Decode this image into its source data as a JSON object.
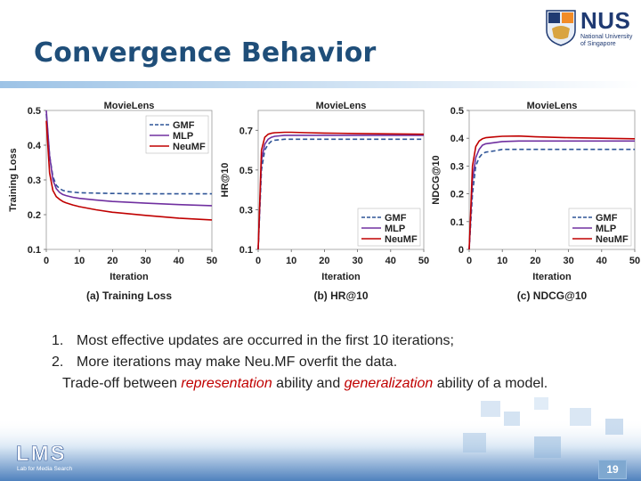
{
  "slide": {
    "title": "Convergence Behavior",
    "bullets": [
      {
        "num": "1.",
        "text": "Most effective updates are occurred in the first 10 iterations;"
      },
      {
        "num": "2.",
        "text": "More iterations may make Neu.MF overfit the data."
      }
    ],
    "tradeoff": {
      "pre": "Trade-off between ",
      "em1": "representation",
      "mid": " ability and ",
      "em2": "generalization",
      "post": " ability of a model."
    },
    "page_number": "19",
    "nus_logo": {
      "name": "NUS",
      "line1": "National University",
      "line2": "of Singapore"
    },
    "lms_logo": {
      "name": "LMS",
      "sub": "Lab for Media Search"
    }
  },
  "colors": {
    "title": "#1f4e79",
    "gmf": "#2f5597",
    "mlp": "#7030a0",
    "neumf": "#c00000",
    "emphasis": "#c00000"
  },
  "chart_data": [
    {
      "type": "line",
      "title": "MovieLens",
      "caption": "(a) Training Loss",
      "xlabel": "Iteration",
      "ylabel": "Training Loss",
      "xlim": [
        0,
        50
      ],
      "ylim": [
        0.1,
        0.5
      ],
      "xticks": [
        "0",
        "10",
        "20",
        "30",
        "40",
        "50"
      ],
      "yticks": [
        "0.1",
        "0.2",
        "0.3",
        "0.4",
        "0.5"
      ],
      "legend_position": "top-right",
      "series": [
        {
          "name": "GMF",
          "style": "dashed",
          "color": "#2f5597",
          "x": [
            0,
            1,
            2,
            3,
            4,
            5,
            6,
            8,
            10,
            15,
            20,
            30,
            40,
            50
          ],
          "y": [
            0.49,
            0.37,
            0.31,
            0.285,
            0.275,
            0.27,
            0.267,
            0.265,
            0.263,
            0.262,
            0.261,
            0.26,
            0.26,
            0.26
          ]
        },
        {
          "name": "MLP",
          "style": "solid",
          "color": "#7030a0",
          "x": [
            0,
            1,
            2,
            3,
            4,
            5,
            6,
            8,
            10,
            15,
            20,
            30,
            40,
            50
          ],
          "y": [
            0.5,
            0.37,
            0.3,
            0.275,
            0.264,
            0.258,
            0.255,
            0.25,
            0.247,
            0.242,
            0.238,
            0.233,
            0.229,
            0.226
          ]
        },
        {
          "name": "NeuMF",
          "style": "solid",
          "color": "#c00000",
          "x": [
            0,
            1,
            2,
            3,
            4,
            5,
            6,
            8,
            10,
            15,
            20,
            30,
            40,
            50
          ],
          "y": [
            0.47,
            0.32,
            0.27,
            0.252,
            0.244,
            0.238,
            0.234,
            0.228,
            0.223,
            0.214,
            0.207,
            0.198,
            0.19,
            0.185
          ]
        }
      ]
    },
    {
      "type": "line",
      "title": "MovieLens",
      "caption": "(b) HR@10",
      "xlabel": "Iteration",
      "ylabel": "HR@10",
      "xlim": [
        0,
        50
      ],
      "ylim": [
        0.1,
        0.8
      ],
      "xticks": [
        "0",
        "10",
        "20",
        "30",
        "40",
        "50"
      ],
      "yticks": [
        "0.1",
        "0.3",
        "0.5",
        "0.7"
      ],
      "legend_position": "bottom-right",
      "series": [
        {
          "name": "GMF",
          "style": "dashed",
          "color": "#2f5597",
          "x": [
            0,
            1,
            2,
            3,
            4,
            5,
            8,
            10,
            15,
            20,
            30,
            40,
            50
          ],
          "y": [
            0.1,
            0.5,
            0.6,
            0.63,
            0.645,
            0.65,
            0.655,
            0.655,
            0.655,
            0.655,
            0.655,
            0.655,
            0.655
          ]
        },
        {
          "name": "MLP",
          "style": "solid",
          "color": "#7030a0",
          "x": [
            0,
            1,
            2,
            3,
            4,
            5,
            8,
            10,
            15,
            20,
            30,
            40,
            50
          ],
          "y": [
            0.1,
            0.55,
            0.63,
            0.655,
            0.665,
            0.67,
            0.675,
            0.675,
            0.675,
            0.675,
            0.675,
            0.675,
            0.675
          ]
        },
        {
          "name": "NeuMF",
          "style": "solid",
          "color": "#c00000",
          "x": [
            0,
            1,
            2,
            3,
            4,
            5,
            8,
            10,
            15,
            20,
            30,
            40,
            50
          ],
          "y": [
            0.1,
            0.6,
            0.665,
            0.68,
            0.685,
            0.688,
            0.69,
            0.69,
            0.688,
            0.686,
            0.684,
            0.682,
            0.68
          ]
        }
      ]
    },
    {
      "type": "line",
      "title": "MovieLens",
      "caption": "(c) NDCG@10",
      "xlabel": "Iteration",
      "ylabel": "NDCG@10",
      "xlim": [
        0,
        50
      ],
      "ylim": [
        0,
        0.5
      ],
      "xticks": [
        "0",
        "10",
        "20",
        "30",
        "40",
        "50"
      ],
      "yticks": [
        "0",
        "0.1",
        "0.2",
        "0.3",
        "0.4",
        "0.5"
      ],
      "legend_position": "bottom-right",
      "series": [
        {
          "name": "GMF",
          "style": "dashed",
          "color": "#2f5597",
          "x": [
            0,
            1,
            2,
            3,
            4,
            5,
            8,
            10,
            15,
            20,
            30,
            40,
            50
          ],
          "y": [
            0,
            0.2,
            0.3,
            0.33,
            0.345,
            0.35,
            0.355,
            0.36,
            0.36,
            0.36,
            0.36,
            0.36,
            0.36
          ]
        },
        {
          "name": "MLP",
          "style": "solid",
          "color": "#7030a0",
          "x": [
            0,
            1,
            2,
            3,
            4,
            5,
            8,
            10,
            15,
            20,
            30,
            40,
            50
          ],
          "y": [
            0,
            0.25,
            0.33,
            0.36,
            0.375,
            0.38,
            0.385,
            0.388,
            0.39,
            0.39,
            0.39,
            0.39,
            0.39
          ]
        },
        {
          "name": "NeuMF",
          "style": "solid",
          "color": "#c00000",
          "x": [
            0,
            1,
            2,
            3,
            4,
            5,
            8,
            10,
            15,
            20,
            30,
            40,
            50
          ],
          "y": [
            0,
            0.3,
            0.37,
            0.39,
            0.398,
            0.402,
            0.405,
            0.407,
            0.408,
            0.405,
            0.402,
            0.4,
            0.398
          ]
        }
      ]
    }
  ]
}
